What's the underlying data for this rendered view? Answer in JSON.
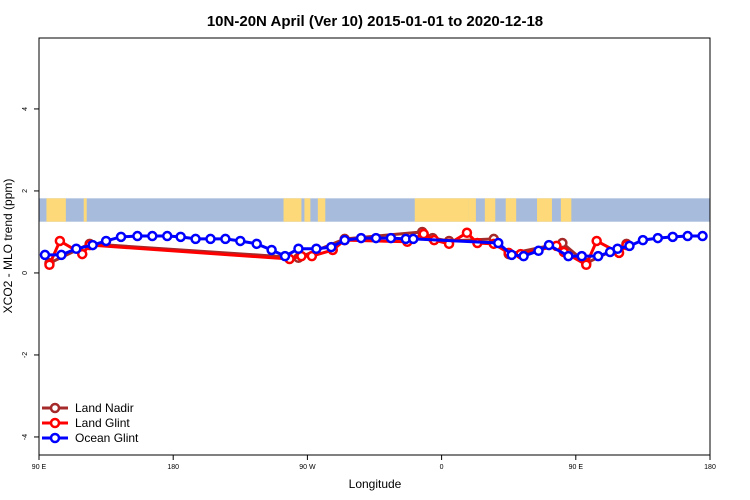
{
  "chart_data": {
    "type": "line",
    "title": "10N-20N April (Ver 10)   2015-01-01 to 2020-12-18",
    "xlabel": "Longitude",
    "ylabel": "XCO2 - MLO trend (ppm)",
    "xlim": [
      90,
      540
    ],
    "ylim": [
      -4.44,
      5.73
    ],
    "x_ticks": [
      {
        "v": 90,
        "label": "90 E"
      },
      {
        "v": 180,
        "label": "180"
      },
      {
        "v": 270,
        "label": "90 W"
      },
      {
        "v": 360,
        "label": "0"
      },
      {
        "v": 450,
        "label": "90 E"
      },
      {
        "v": 540,
        "label": "180"
      }
    ],
    "y_ticks": [
      {
        "v": 4,
        "label": "4"
      },
      {
        "v": 2,
        "label": "2"
      },
      {
        "v": 0,
        "label": "0"
      },
      {
        "v": -2,
        "label": "-2"
      },
      {
        "v": -4,
        "label": "-4"
      }
    ],
    "map_band": [
      1.25,
      1.82
    ],
    "colors": {
      "ocean": "#a7bcdc",
      "land": "#fdd97a"
    },
    "legend_position": "bottom-left",
    "series": [
      {
        "name": "Land Nadir",
        "color": "#a52a2a",
        "points": [
          [
            97,
            0.24
          ],
          [
            124,
            0.71
          ],
          [
            264,
            0.37
          ],
          [
            295,
            0.83
          ],
          [
            347,
            1.0
          ],
          [
            354,
            0.85
          ],
          [
            365,
            0.78
          ],
          [
            395,
            0.83
          ],
          [
            405,
            0.46
          ],
          [
            441,
            0.73
          ],
          [
            457,
            0.24
          ],
          [
            484,
            0.71
          ]
        ]
      },
      {
        "name": "Land Glint",
        "color": "#ff0000",
        "points": [
          [
            97,
            0.2
          ],
          [
            104,
            0.78
          ],
          [
            119,
            0.46
          ],
          [
            124,
            0.68
          ],
          [
            258,
            0.34
          ],
          [
            266,
            0.41
          ],
          [
            273,
            0.41
          ],
          [
            287,
            0.56
          ],
          [
            295,
            0.8
          ],
          [
            337,
            0.76
          ],
          [
            348,
            0.95
          ],
          [
            355,
            0.8
          ],
          [
            365,
            0.71
          ],
          [
            377,
            0.98
          ],
          [
            384,
            0.73
          ],
          [
            395,
            0.71
          ],
          [
            405,
            0.49
          ],
          [
            413,
            0.46
          ],
          [
            437,
            0.66
          ],
          [
            442,
            0.51
          ],
          [
            457,
            0.2
          ],
          [
            464,
            0.78
          ],
          [
            479,
            0.49
          ],
          [
            484,
            0.68
          ]
        ]
      },
      {
        "name": "Ocean Glint",
        "color": "#0000ff",
        "points": [
          [
            94,
            0.44
          ],
          [
            105,
            0.44
          ],
          [
            115,
            0.59
          ],
          [
            126,
            0.68
          ],
          [
            135,
            0.78
          ],
          [
            145,
            0.88
          ],
          [
            156,
            0.9
          ],
          [
            166,
            0.9
          ],
          [
            176,
            0.9
          ],
          [
            185,
            0.88
          ],
          [
            195,
            0.83
          ],
          [
            205,
            0.83
          ],
          [
            215,
            0.83
          ],
          [
            225,
            0.78
          ],
          [
            236,
            0.71
          ],
          [
            246,
            0.56
          ],
          [
            255,
            0.41
          ],
          [
            264,
            0.59
          ],
          [
            276,
            0.59
          ],
          [
            286,
            0.63
          ],
          [
            295,
            0.8
          ],
          [
            306,
            0.85
          ],
          [
            316,
            0.85
          ],
          [
            326,
            0.85
          ],
          [
            336,
            0.83
          ],
          [
            341,
            0.83
          ],
          [
            398,
            0.73
          ],
          [
            407,
            0.44
          ],
          [
            415,
            0.41
          ],
          [
            425,
            0.54
          ],
          [
            432,
            0.68
          ],
          [
            445,
            0.41
          ],
          [
            454,
            0.41
          ],
          [
            465,
            0.41
          ],
          [
            473,
            0.51
          ],
          [
            478,
            0.59
          ],
          [
            486,
            0.66
          ],
          [
            495,
            0.8
          ],
          [
            505,
            0.85
          ],
          [
            515,
            0.88
          ],
          [
            525,
            0.9
          ],
          [
            535,
            0.9
          ]
        ]
      }
    ]
  }
}
